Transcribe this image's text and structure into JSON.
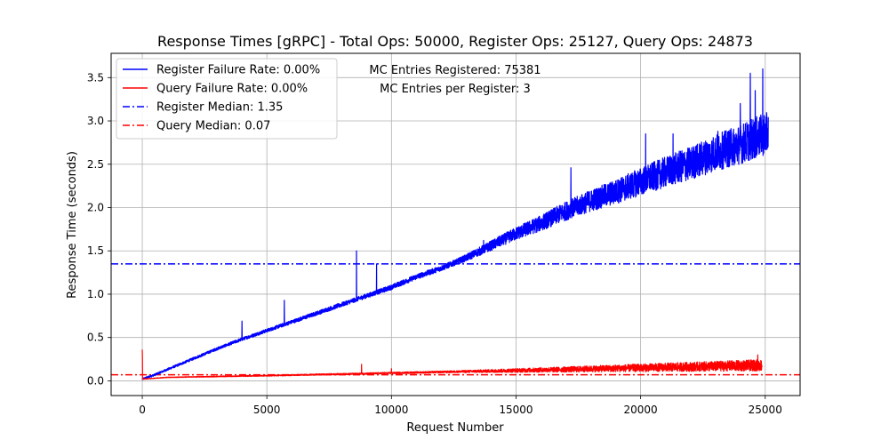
{
  "chart_data": {
    "type": "line",
    "title": "Response Times [gRPC] - Total Ops: 50000, Register Ops: 25127, Query Ops: 24873",
    "xlabel": "Request Number",
    "ylabel": "Response Time (seconds)",
    "xlim": [
      -1250,
      26400
    ],
    "ylim": [
      -0.17,
      3.78
    ],
    "x_ticks": [
      0,
      5000,
      10000,
      15000,
      20000,
      25000
    ],
    "x_tick_labels": [
      "0",
      "5000",
      "10000",
      "15000",
      "20000",
      "25000"
    ],
    "y_ticks": [
      0.0,
      0.5,
      1.0,
      1.5,
      2.0,
      2.5,
      3.0,
      3.5
    ],
    "y_tick_labels": [
      "0.0",
      "0.5",
      "1.0",
      "1.5",
      "2.0",
      "2.5",
      "3.0",
      "3.5"
    ],
    "grid": true,
    "legend_position": "top-left",
    "legend": [
      {
        "label": "Register Failure Rate: 0.00%",
        "color": "#0000ff",
        "style": "solid"
      },
      {
        "label": "Query Failure Rate: 0.00%",
        "color": "#ff0000",
        "style": "solid"
      },
      {
        "label": "Register Median: 1.35",
        "color": "#0000ff",
        "style": "dashdot"
      },
      {
        "label": "Query Median: 0.07",
        "color": "#ff0000",
        "style": "dashdot"
      }
    ],
    "annotations": [
      "MC Entries Registered: 75381",
      "MC Entries per Register: 3"
    ],
    "series": [
      {
        "name": "Register",
        "color": "#0000ff",
        "count": 25127,
        "trend_x": [
          0,
          500,
          1000,
          2000,
          3000,
          4000,
          5000,
          6000,
          7000,
          8000,
          9000,
          10000,
          11000,
          12000,
          13000,
          14000,
          15000,
          16000,
          17000,
          18000,
          19000,
          20000,
          21000,
          22000,
          23000,
          24000,
          25000,
          25127
        ],
        "trend_y": [
          0.02,
          0.07,
          0.13,
          0.25,
          0.37,
          0.48,
          0.58,
          0.68,
          0.78,
          0.88,
          0.98,
          1.08,
          1.2,
          1.3,
          1.42,
          1.56,
          1.7,
          1.82,
          1.96,
          2.08,
          2.18,
          2.3,
          2.41,
          2.51,
          2.63,
          2.73,
          2.85,
          2.85
        ],
        "noise_amplitude": [
          0.02,
          0.06,
          0.45
        ],
        "spikes": [
          [
            4000,
            0.69
          ],
          [
            5700,
            0.93
          ],
          [
            8600,
            1.5
          ],
          [
            9400,
            1.35
          ],
          [
            13700,
            1.62
          ],
          [
            17200,
            2.46
          ],
          [
            20200,
            2.85
          ],
          [
            21300,
            2.85
          ],
          [
            23100,
            2.88
          ],
          [
            24000,
            3.2
          ],
          [
            24400,
            3.55
          ],
          [
            24600,
            3.35
          ],
          [
            24900,
            3.6
          ]
        ]
      },
      {
        "name": "Query",
        "color": "#ff0000",
        "count": 24873,
        "trend_x": [
          0,
          1000,
          5000,
          10000,
          15000,
          20000,
          24873
        ],
        "trend_y": [
          0.02,
          0.04,
          0.06,
          0.09,
          0.12,
          0.15,
          0.18
        ],
        "noise_amplitude": [
          0.005,
          0.02,
          0.12
        ],
        "spikes": [
          [
            0,
            0.36
          ],
          [
            5,
            0.3
          ],
          [
            8800,
            0.19
          ],
          [
            10000,
            0.14
          ],
          [
            24700,
            0.3
          ]
        ]
      }
    ],
    "medians": [
      {
        "name": "Register Median",
        "value": 1.35,
        "color": "#0000ff"
      },
      {
        "name": "Query Median",
        "value": 0.07,
        "color": "#ff0000"
      }
    ]
  }
}
